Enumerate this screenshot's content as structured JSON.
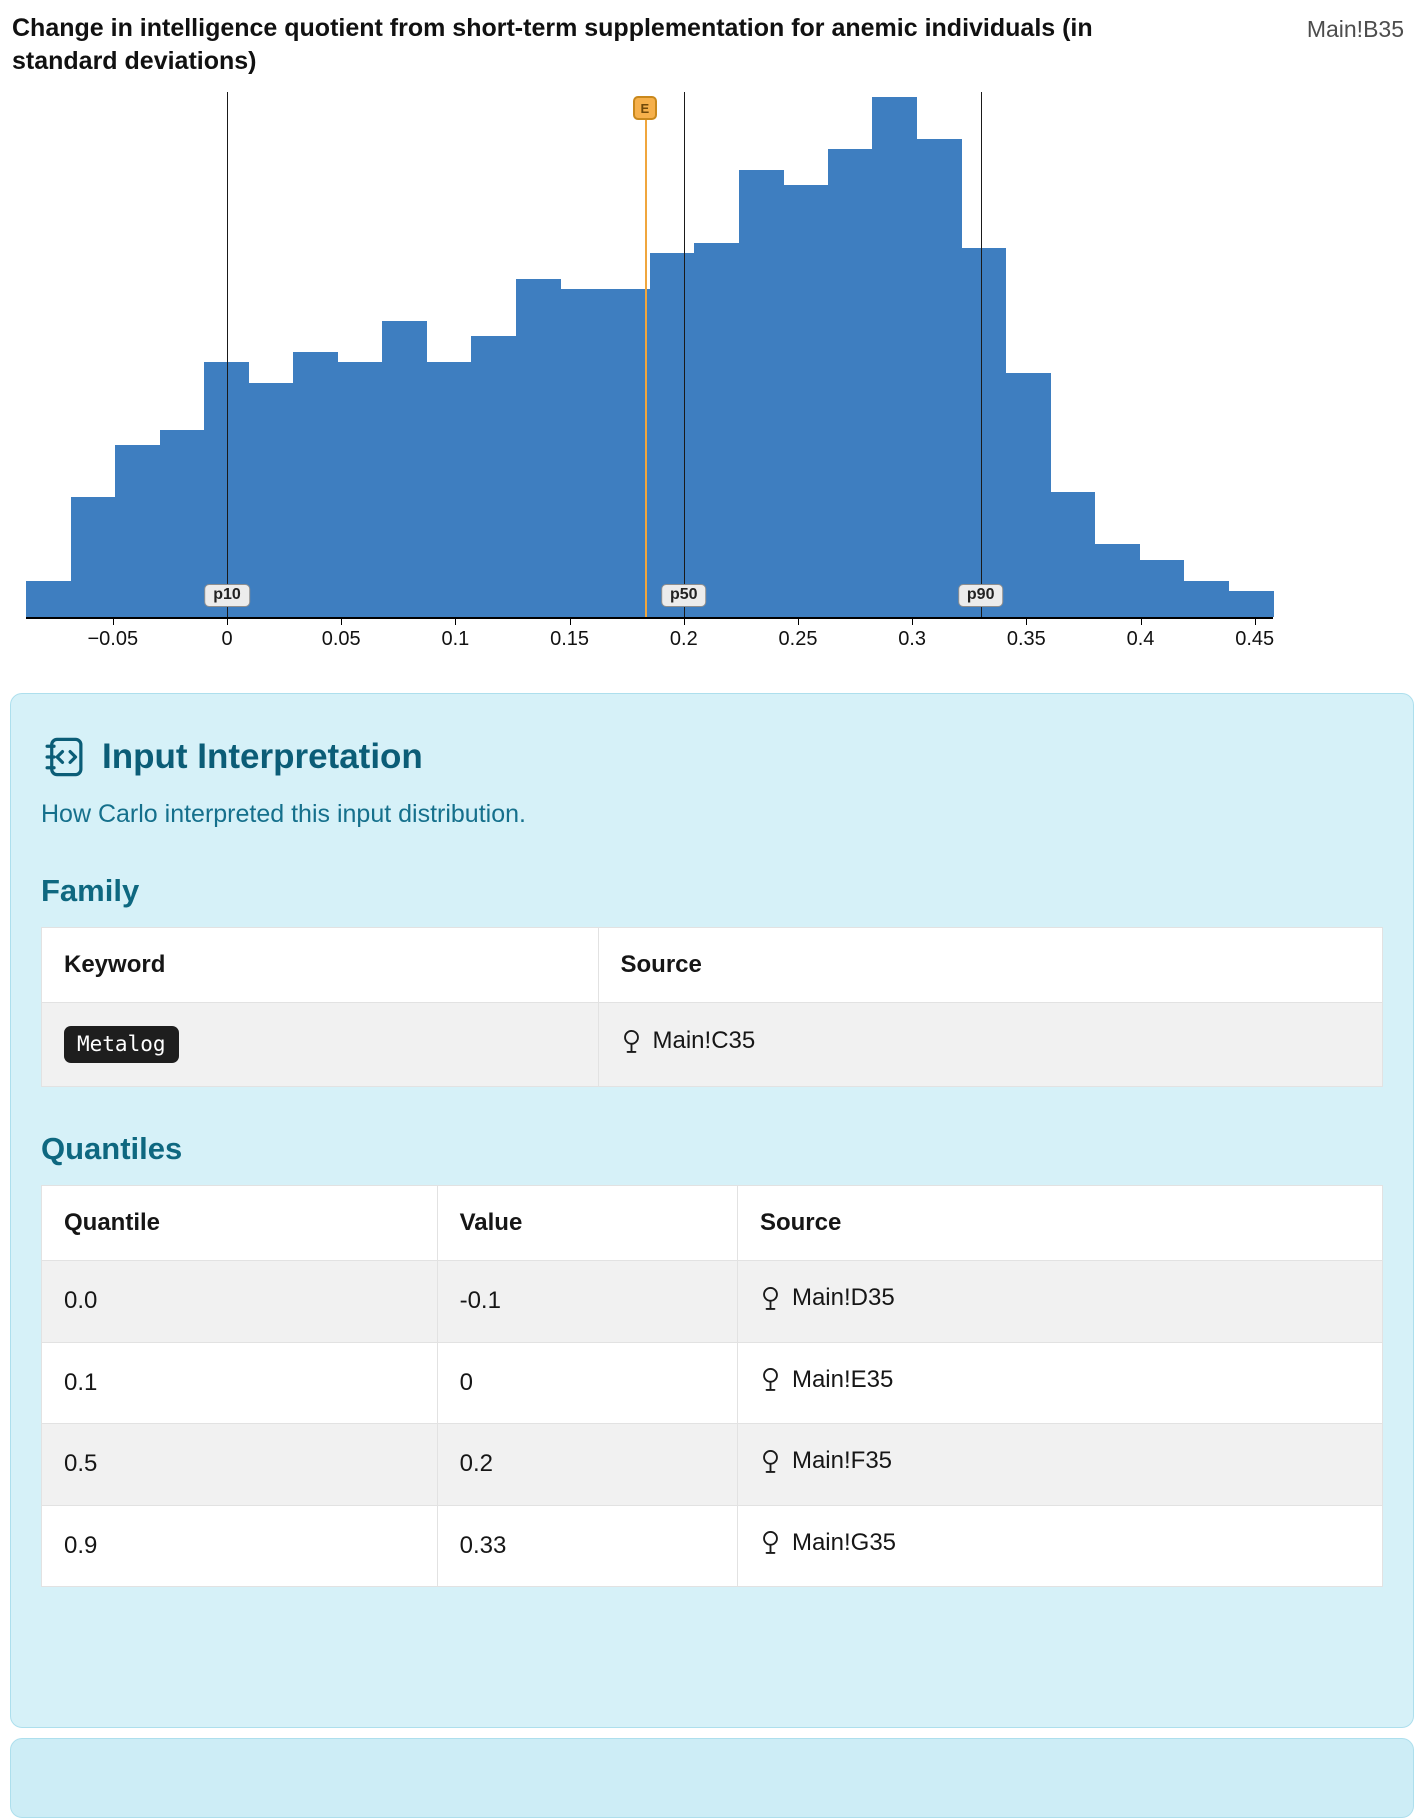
{
  "header": {
    "title": "Change in intelligence quotient from short-term supplementation for anemic individuals (in standard deviations)",
    "cell_reference": "Main!B35"
  },
  "chart_data": {
    "type": "bar",
    "variant": "histogram",
    "title": "Change in intelligence quotient from short-term supplementation for anemic individuals (in standard deviations)",
    "xlabel": "",
    "ylabel": "",
    "grid": false,
    "legend": false,
    "bar_color": "#3e7ec0",
    "x_range": [
      -0.088,
      0.458
    ],
    "ylim": [
      0,
      1
    ],
    "bin_start": -0.088,
    "bin_width": 0.0195,
    "relative_heights": [
      0.07,
      0.23,
      0.33,
      0.36,
      0.49,
      0.45,
      0.51,
      0.49,
      0.57,
      0.49,
      0.54,
      0.65,
      0.63,
      0.63,
      0.7,
      0.72,
      0.86,
      0.83,
      0.9,
      1.0,
      0.92,
      0.71,
      0.47,
      0.24,
      0.14,
      0.11,
      0.07,
      0.05
    ],
    "x_ticks": [
      {
        "value": -0.05,
        "label": "−0.05"
      },
      {
        "value": 0,
        "label": "0"
      },
      {
        "value": 0.05,
        "label": "0.05"
      },
      {
        "value": 0.1,
        "label": "0.1"
      },
      {
        "value": 0.15,
        "label": "0.15"
      },
      {
        "value": 0.2,
        "label": "0.2"
      },
      {
        "value": 0.25,
        "label": "0.25"
      },
      {
        "value": 0.3,
        "label": "0.3"
      },
      {
        "value": 0.35,
        "label": "0.35"
      },
      {
        "value": 0.4,
        "label": "0.4"
      },
      {
        "value": 0.45,
        "label": "0.45"
      }
    ],
    "percentile_markers": [
      {
        "label": "p10",
        "x": 0
      },
      {
        "label": "p50",
        "x": 0.2
      },
      {
        "label": "p90",
        "x": 0.33
      }
    ],
    "mean_marker": {
      "label": "E",
      "x": 0.183,
      "color": "#f0a63d"
    }
  },
  "panel": {
    "title": "Input Interpretation",
    "subtitle": "How Carlo interpreted this input distribution.",
    "family": {
      "heading": "Family",
      "columns": [
        "Keyword",
        "Source"
      ],
      "rows": [
        {
          "keyword": "Metalog",
          "source": "Main!C35"
        }
      ]
    },
    "quantiles": {
      "heading": "Quantiles",
      "columns": [
        "Quantile",
        "Value",
        "Source"
      ],
      "rows": [
        {
          "quantile": "0.0",
          "value": "-0.1",
          "source": "Main!D35"
        },
        {
          "quantile": "0.1",
          "value": "0",
          "source": "Main!E35"
        },
        {
          "quantile": "0.5",
          "value": "0.2",
          "source": "Main!F35"
        },
        {
          "quantile": "0.9",
          "value": "0.33",
          "source": "Main!G35"
        }
      ]
    },
    "colors": {
      "panel_bg": "#d6f1f8",
      "panel_border": "#addfed",
      "heading_text": "#0b5d77",
      "bar_color": "#3e7ec0",
      "mean_marker_color": "#f0a63d"
    }
  }
}
